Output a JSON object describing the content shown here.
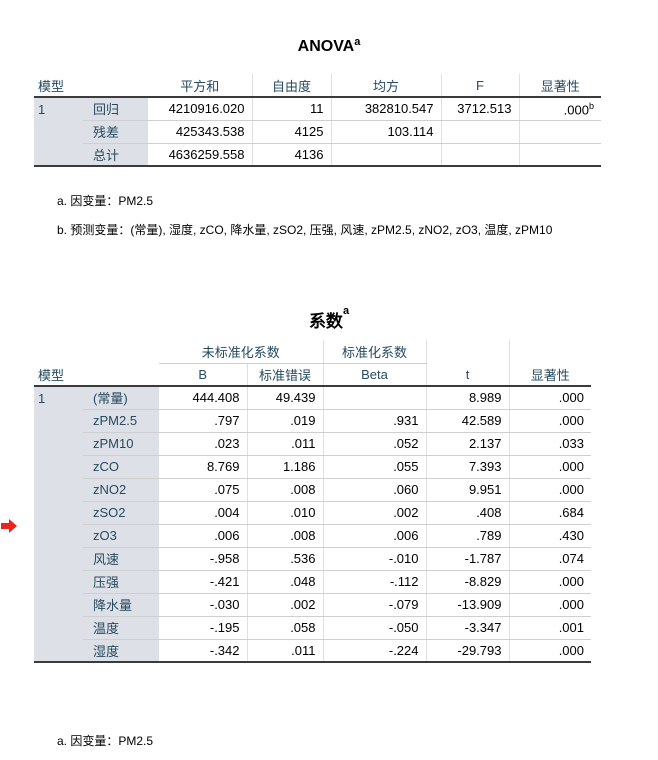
{
  "anova": {
    "title": "ANOVA",
    "title_sup": "a",
    "headers": {
      "model": "模型",
      "ss": "平方和",
      "df": "自由度",
      "ms": "均方",
      "f": "F",
      "sig": "显著性"
    },
    "model_no": "1",
    "rows": [
      {
        "label": "回归",
        "ss": "4210916.020",
        "df": "11",
        "ms": "382810.547",
        "f": "3712.513",
        "sig": ".000",
        "sig_sup": "b"
      },
      {
        "label": "残差",
        "ss": "425343.538",
        "df": "4125",
        "ms": "103.114",
        "f": "",
        "sig": "",
        "sig_sup": ""
      },
      {
        "label": "总计",
        "ss": "4636259.558",
        "df": "4136",
        "ms": "",
        "f": "",
        "sig": "",
        "sig_sup": ""
      }
    ],
    "note_a": "a. 因变量：PM2.5",
    "note_b": "b. 预测变量：(常量), 湿度, zCO, 降水量, zSO2, 压强, 风速, zPM2.5, zNO2, zO3, 温度, zPM10"
  },
  "coef": {
    "title": "系数",
    "title_sup": "a",
    "headers": {
      "unstd": "未标准化系数",
      "std": "标准化系数",
      "model": "模型",
      "b": "B",
      "se": "标准错误",
      "beta": "Beta",
      "t": "t",
      "sig": "显著性"
    },
    "model_no": "1",
    "rows": [
      {
        "label": "(常量)",
        "b": "444.408",
        "se": "49.439",
        "beta": "",
        "t": "8.989",
        "sig": ".000"
      },
      {
        "label": "zPM2.5",
        "b": ".797",
        "se": ".019",
        "beta": ".931",
        "t": "42.589",
        "sig": ".000"
      },
      {
        "label": "zPM10",
        "b": ".023",
        "se": ".011",
        "beta": ".052",
        "t": "2.137",
        "sig": ".033"
      },
      {
        "label": "zCO",
        "b": "8.769",
        "se": "1.186",
        "beta": ".055",
        "t": "7.393",
        "sig": ".000"
      },
      {
        "label": "zNO2",
        "b": ".075",
        "se": ".008",
        "beta": ".060",
        "t": "9.951",
        "sig": ".000"
      },
      {
        "label": "zSO2",
        "b": ".004",
        "se": ".010",
        "beta": ".002",
        "t": ".408",
        "sig": ".684"
      },
      {
        "label": "zO3",
        "b": ".006",
        "se": ".008",
        "beta": ".006",
        "t": ".789",
        "sig": ".430"
      },
      {
        "label": "风速",
        "b": "-.958",
        "se": ".536",
        "beta": "-.010",
        "t": "-1.787",
        "sig": ".074"
      },
      {
        "label": "压强",
        "b": "-.421",
        "se": ".048",
        "beta": "-.112",
        "t": "-8.829",
        "sig": ".000"
      },
      {
        "label": "降水量",
        "b": "-.030",
        "se": ".002",
        "beta": "-.079",
        "t": "-13.909",
        "sig": ".000"
      },
      {
        "label": "温度",
        "b": "-.195",
        "se": ".058",
        "beta": "-.050",
        "t": "-3.347",
        "sig": ".001"
      },
      {
        "label": "湿度",
        "b": "-.342",
        "se": ".011",
        "beta": "-.224",
        "t": "-29.793",
        "sig": ".000"
      }
    ],
    "note_a": "a. 因变量：PM2.5"
  },
  "marker": {
    "icon": "arrow-right-icon",
    "color": "#e8251f"
  }
}
